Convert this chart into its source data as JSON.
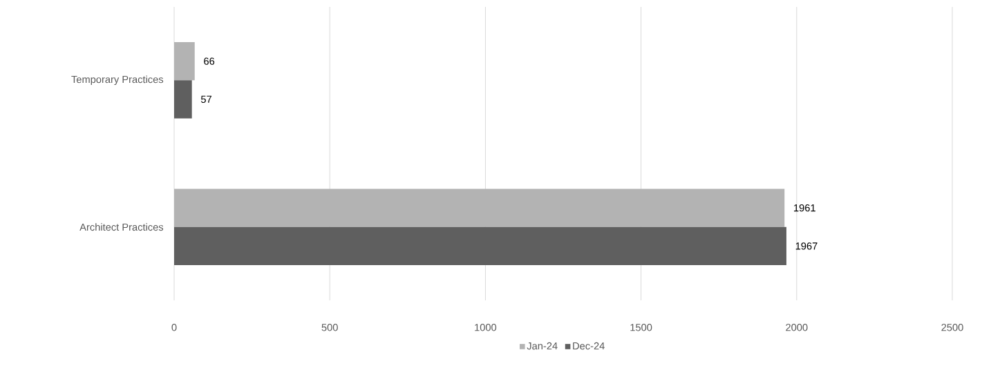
{
  "chart_data": {
    "type": "bar",
    "orientation": "horizontal",
    "categories": [
      "Temporary Practices",
      "Architect Practices"
    ],
    "series": [
      {
        "name": "Jan-24",
        "color": "#b3b3b3",
        "values": [
          66,
          1961
        ]
      },
      {
        "name": "Dec-24",
        "color": "#5f5f5f",
        "values": [
          57,
          1967
        ]
      }
    ],
    "xlim": [
      0,
      2500
    ],
    "xticks": [
      0,
      500,
      1000,
      1500,
      2000,
      2500
    ],
    "grid": "x",
    "legend": "bottom",
    "data_labels": true
  }
}
